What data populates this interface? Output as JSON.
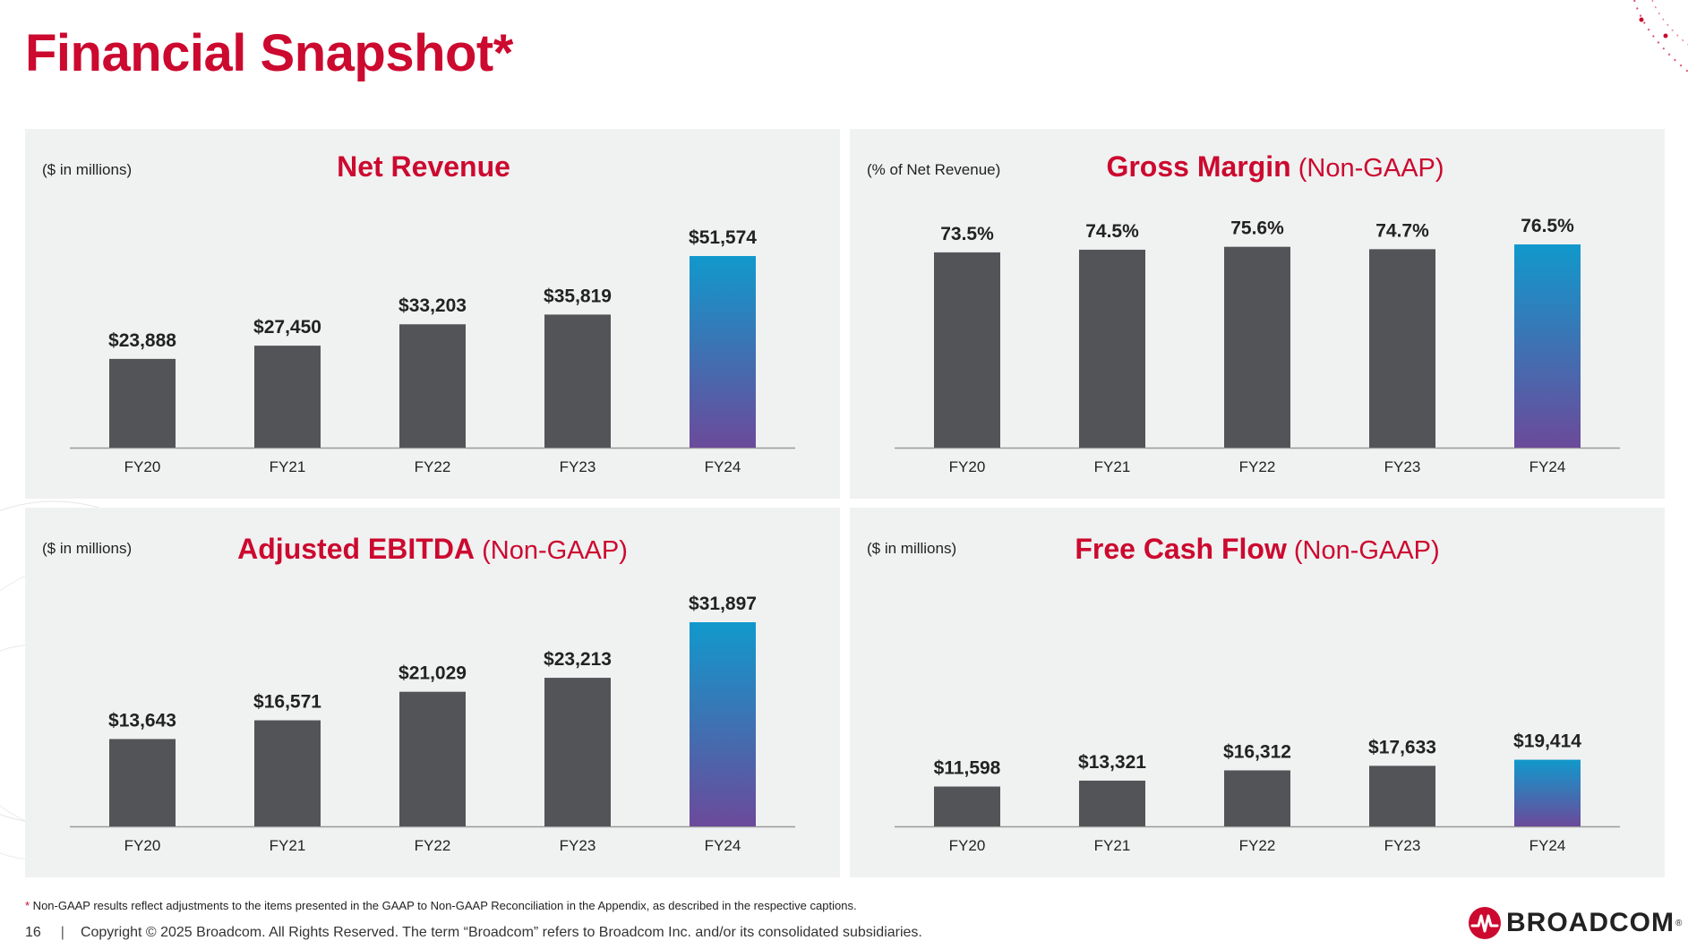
{
  "page": {
    "title": "Financial Snapshot*",
    "footnote_star": "*",
    "footnote": " Non-GAAP results reflect adjustments to the items presented in the GAAP to Non-GAAP Reconciliation in the Appendix, as described in the respective captions.",
    "page_number": "16",
    "separator": "|",
    "copyright": "Copyright © 2025 Broadcom.  All Rights Reserved. The term “Broadcom” refers to Broadcom Inc. and/or its consolidated subsidiaries.",
    "brand_name": "BROADCOM",
    "brand_mark": "®"
  },
  "colors": {
    "accent": "#cc092f",
    "panel_bg": "#f0f1f1",
    "bar": "#535457",
    "highlight_top": "#1199cc",
    "highlight_bottom": "#6b4a9a",
    "axis": "#9a9a9a"
  },
  "panels": [
    {
      "title": "Net Revenue",
      "subtitle": "",
      "unit": "($ in millions)"
    },
    {
      "title": "Gross Margin",
      "subtitle": " (Non-GAAP)",
      "unit": "(% of Net Revenue)"
    },
    {
      "title": "Adjusted EBITDA",
      "subtitle": " (Non-GAAP)",
      "unit": "($ in millions)"
    },
    {
      "title": "Free Cash Flow",
      "subtitle": " (Non-GAAP)",
      "unit": "($ in millions)"
    }
  ],
  "chart_data": [
    {
      "type": "bar",
      "title": "Net Revenue",
      "ylabel": "($ in millions)",
      "categories": [
        "FY20",
        "FY21",
        "FY22",
        "FY23",
        "FY24"
      ],
      "values": [
        23888,
        27450,
        33203,
        35819,
        51574
      ],
      "labels": [
        "$23,888",
        "$27,450",
        "$33,203",
        "$35,819",
        "$51,574"
      ],
      "ylim": [
        0,
        51574
      ],
      "highlight_index": 4,
      "grid": false
    },
    {
      "type": "bar",
      "title": "Gross Margin (Non-GAAP)",
      "ylabel": "(% of Net Revenue)",
      "categories": [
        "FY20",
        "FY21",
        "FY22",
        "FY23",
        "FY24"
      ],
      "values": [
        73.5,
        74.5,
        75.6,
        74.7,
        76.5
      ],
      "labels": [
        "73.5%",
        "74.5%",
        "75.6%",
        "74.7%",
        "76.5%"
      ],
      "ylim": [
        0,
        76.5
      ],
      "highlight_index": 4,
      "grid": false
    },
    {
      "type": "bar",
      "title": "Adjusted EBITDA (Non-GAAP)",
      "ylabel": "($ in millions)",
      "categories": [
        "FY20",
        "FY21",
        "FY22",
        "FY23",
        "FY24"
      ],
      "values": [
        13643,
        16571,
        21029,
        23213,
        31897
      ],
      "labels": [
        "$13,643",
        "$16,571",
        "$21,029",
        "$23,213",
        "$31,897"
      ],
      "ylim": [
        0,
        31897
      ],
      "highlight_index": 4,
      "grid": false
    },
    {
      "type": "bar",
      "title": "Free Cash Flow (Non-GAAP)",
      "ylabel": "($ in millions)",
      "categories": [
        "FY20",
        "FY21",
        "FY22",
        "FY23",
        "FY24"
      ],
      "values": [
        11598,
        13321,
        16312,
        17633,
        19414
      ],
      "labels": [
        "$11,598",
        "$13,321",
        "$16,312",
        "$17,633",
        "$19,414"
      ],
      "ylim": [
        0,
        36000
      ],
      "highlight_index": 4,
      "grid": false
    }
  ]
}
